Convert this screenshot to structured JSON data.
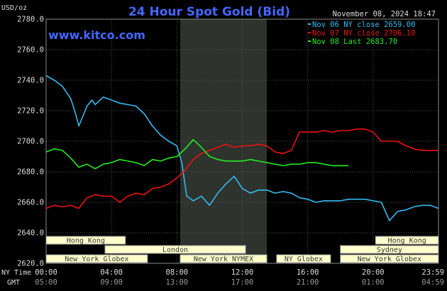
{
  "title": "24 Hour Spot Gold (Bid)",
  "brand": "www.kitco.com",
  "y_unit": "USD/oz",
  "datetime": "November 08, 2024 18:47",
  "row_labels": {
    "ny": "NY Time",
    "gmt": "GMT"
  },
  "colors": {
    "nov06": "#33bbee",
    "nov07": "#ee1111",
    "nov08": "#22ee22",
    "grid": "#555555",
    "text": "#dddddd",
    "title": "#4466ff",
    "band_fill": "#ffffcc",
    "band_border": "#999999",
    "nymex_shade": "#2e332e"
  },
  "chart_data": {
    "type": "line",
    "title": "24 Hour Spot Gold (Bid)",
    "ylabel": "USD/oz",
    "ylim": [
      2620,
      2780
    ],
    "yticks": [
      2620,
      2640,
      2660,
      2680,
      2700,
      2720,
      2740,
      2760,
      2780
    ],
    "ytick_labels": [
      "2620.0",
      "2640.0",
      "2660.0",
      "2680.0",
      "2700.0",
      "2720.0",
      "2740.0",
      "2760.0",
      "2780.0"
    ],
    "xlim": [
      0,
      24
    ],
    "xticks": [
      0,
      4,
      8,
      12,
      16,
      20,
      24
    ],
    "xtick_labels_ny": [
      "00:00",
      "04:00",
      "08:00",
      "12:00",
      "16:00",
      "20:00",
      "23:59"
    ],
    "xtick_labels_gmt": [
      "05:00",
      "09:00",
      "13:00",
      "17:00",
      "21:00",
      "01:00",
      "04:59"
    ],
    "grid": true,
    "legend_placement": "top-right",
    "series": [
      {
        "name": "Nov 06 NY close 2659.00",
        "key": "nov06",
        "x": [
          0,
          0.5,
          1,
          1.5,
          1.8,
          2,
          2.5,
          2.8,
          3,
          3.5,
          4,
          4.5,
          5,
          5.5,
          6,
          6.5,
          7,
          7.5,
          8,
          8.3,
          8.6,
          9,
          9.5,
          10,
          10.5,
          11,
          11.5,
          12,
          12.5,
          13,
          13.5,
          14,
          14.5,
          15,
          15.5,
          16,
          16.5,
          17,
          17.5,
          18,
          18.5,
          19,
          19.5,
          20,
          20.5,
          21,
          21.5,
          22,
          22.5,
          23,
          23.5,
          24
        ],
        "y": [
          2743,
          2740,
          2736,
          2728,
          2718,
          2710,
          2723,
          2727,
          2724,
          2729,
          2727,
          2725,
          2724,
          2723,
          2718,
          2710,
          2704,
          2700,
          2697,
          2686,
          2664,
          2661,
          2664,
          2658,
          2666,
          2672,
          2677,
          2669,
          2666,
          2668,
          2668,
          2666,
          2667,
          2666,
          2663,
          2662,
          2660,
          2661,
          2661,
          2661,
          2662,
          2662,
          2662,
          2661,
          2660,
          2648,
          2654,
          2655,
          2657,
          2658,
          2658,
          2656
        ]
      },
      {
        "name": "Nov 07 NY close 2706.10",
        "key": "nov07",
        "x": [
          0,
          0.5,
          1,
          1.5,
          2,
          2.5,
          3,
          3.5,
          4,
          4.5,
          5,
          5.5,
          6,
          6.5,
          7,
          7.5,
          8,
          8.5,
          9,
          9.5,
          10,
          10.5,
          11,
          11.5,
          12,
          12.5,
          13,
          13.5,
          14,
          14.5,
          15,
          15.5,
          16,
          16.5,
          17,
          17.5,
          18,
          18.5,
          19,
          19.5,
          20,
          20.5,
          21,
          21.5,
          22,
          22.5,
          23,
          23.5,
          24
        ],
        "y": [
          2656,
          2658,
          2657,
          2658,
          2656,
          2663,
          2665,
          2664,
          2664,
          2660,
          2664,
          2666,
          2665,
          2669,
          2670,
          2672,
          2676,
          2681,
          2688,
          2692,
          2694,
          2696,
          2698,
          2696,
          2697,
          2697,
          2698,
          2697,
          2693,
          2692,
          2694,
          2706,
          2706,
          2706,
          2707,
          2706,
          2707,
          2707,
          2708,
          2708,
          2706,
          2700,
          2700,
          2700,
          2697,
          2695,
          2694,
          2694,
          2694
        ]
      },
      {
        "name": "Nov 08 Last 2683.70",
        "key": "nov08",
        "x": [
          0,
          0.5,
          1,
          1.5,
          2,
          2.5,
          3,
          3.5,
          4,
          4.5,
          5,
          5.5,
          6,
          6.5,
          7,
          7.5,
          8,
          8.5,
          9,
          9.5,
          10,
          10.5,
          11,
          11.5,
          12,
          12.5,
          13,
          13.5,
          14,
          14.5,
          15,
          15.5,
          16,
          16.5,
          17,
          17.5,
          18,
          18.5
        ],
        "y": [
          2693,
          2695,
          2694,
          2689,
          2683,
          2685,
          2682,
          2685,
          2686,
          2688,
          2687,
          2686,
          2684,
          2688,
          2687,
          2689,
          2690,
          2695,
          2701,
          2696,
          2690,
          2688,
          2687,
          2687,
          2687,
          2688,
          2687,
          2686,
          2685,
          2684,
          2685,
          2685,
          2686,
          2686,
          2685,
          2684,
          2684,
          2684
        ]
      }
    ],
    "session_bands": [
      {
        "label": "Hong Kong",
        "row": 0,
        "start": 0,
        "end": 4.85
      },
      {
        "label": "Hong Kong",
        "row": 0,
        "start": 20.15,
        "end": 24
      },
      {
        "label": "London",
        "row": 1,
        "start": 3.6,
        "end": 12.2
      },
      {
        "label": "Sydney",
        "row": 1,
        "start": 18.0,
        "end": 24
      },
      {
        "label": "New York Globex",
        "row": 2,
        "start": 0,
        "end": 6.2
      },
      {
        "label": "New York NYMEX",
        "row": 2,
        "start": 8.2,
        "end": 13.5
      },
      {
        "label": "NY Globex",
        "row": 2,
        "start": 14.1,
        "end": 17.4
      },
      {
        "label": "New York Globex",
        "row": 2,
        "start": 18.0,
        "end": 24
      }
    ],
    "nymex_shade": [
      8.2,
      13.5
    ]
  }
}
